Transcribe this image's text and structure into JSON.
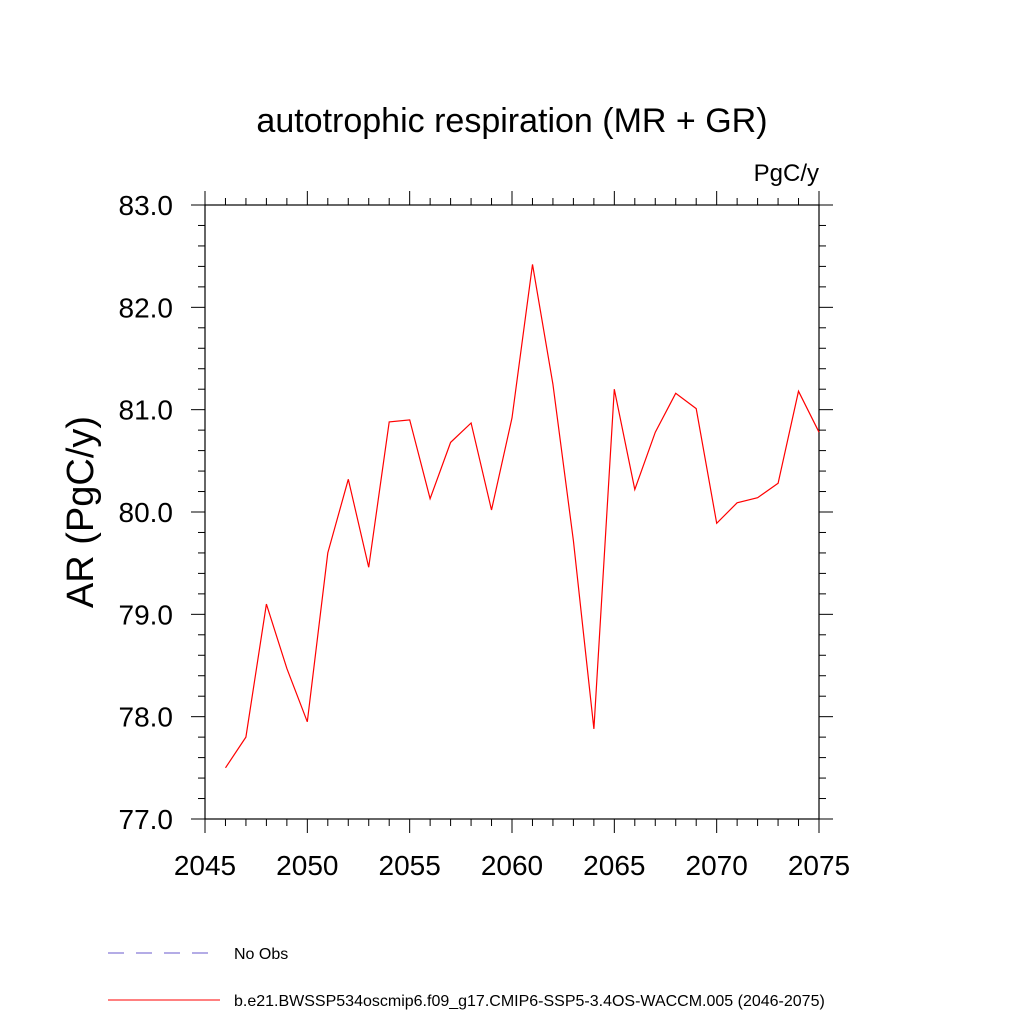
{
  "chart_data": {
    "type": "line",
    "title": "autotrophic respiration (MR + GR)",
    "units": "PgC/y",
    "ylabel": "AR  (PgC/y)",
    "xlabel": "",
    "xlim": [
      2045,
      2075
    ],
    "ylim": [
      77.0,
      83.0
    ],
    "x_ticks": [
      2045,
      2050,
      2055,
      2060,
      2065,
      2070,
      2075
    ],
    "y_ticks": [
      "77.0",
      "78.0",
      "79.0",
      "80.0",
      "81.0",
      "82.0",
      "83.0"
    ],
    "grid": false,
    "legend_position": "bottom",
    "series": [
      {
        "name": "No Obs",
        "color": "#6a5acd",
        "dash": "dashed",
        "x": [],
        "y": []
      },
      {
        "name": "b.e21.BWSSP534oscmip6.f09_g17.CMIP6-SSP5-3.4OS-WACCM.005 (2046-2075)",
        "color": "#ff0000",
        "dash": "solid",
        "x": [
          2046,
          2047,
          2048,
          2049,
          2050,
          2051,
          2052,
          2053,
          2054,
          2055,
          2056,
          2057,
          2058,
          2059,
          2060,
          2061,
          2062,
          2063,
          2064,
          2065,
          2066,
          2067,
          2068,
          2069,
          2070,
          2071,
          2072,
          2073,
          2074,
          2075
        ],
        "y": [
          77.5,
          77.8,
          79.1,
          78.47,
          77.95,
          79.6,
          80.32,
          79.46,
          80.88,
          80.9,
          80.13,
          80.68,
          80.87,
          80.02,
          80.92,
          82.42,
          81.25,
          79.72,
          77.88,
          81.2,
          80.22,
          80.78,
          81.16,
          81.01,
          79.89,
          80.09,
          80.14,
          80.28,
          81.18,
          80.78
        ]
      }
    ]
  }
}
